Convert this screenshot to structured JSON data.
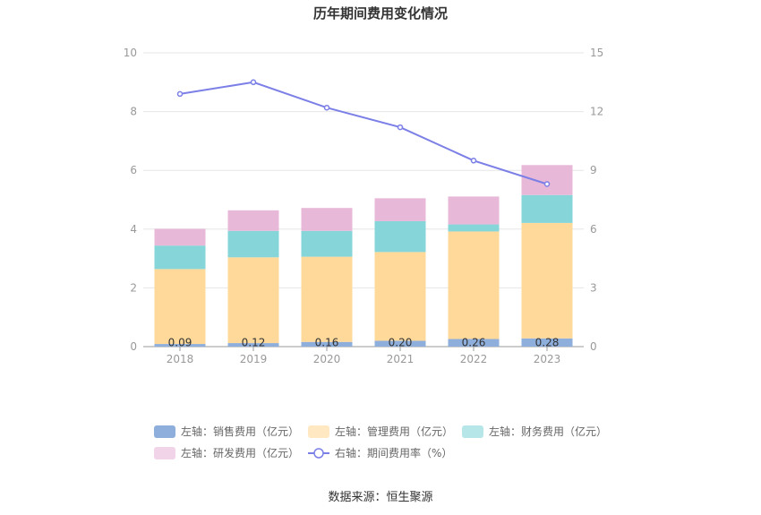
{
  "chart_data": {
    "type": "bar",
    "title": "历年期间费用变化情况",
    "categories": [
      "2018",
      "2019",
      "2020",
      "2021",
      "2022",
      "2023"
    ],
    "series": [
      {
        "name": "左轴：销售费用（亿元）",
        "kind": "bar",
        "axis": "left",
        "color": "#8eaedb",
        "values": [
          0.09,
          0.12,
          0.16,
          0.2,
          0.26,
          0.28
        ],
        "labels": [
          "0.09",
          "0.12",
          "0.16",
          "0.20",
          "0.26",
          "0.28"
        ]
      },
      {
        "name": "左轴：管理费用（亿元）",
        "kind": "bar",
        "axis": "left",
        "color": "#ffd99a",
        "values": [
          2.55,
          2.92,
          2.9,
          3.02,
          3.66,
          3.93
        ]
      },
      {
        "name": "左轴：财务费用（亿元）",
        "kind": "bar",
        "axis": "left",
        "color": "#86d6d9",
        "values": [
          0.8,
          0.9,
          0.88,
          1.05,
          0.24,
          0.95
        ]
      },
      {
        "name": "左轴：研发费用（亿元）",
        "kind": "bar",
        "axis": "left",
        "color": "#e8b8d8",
        "values": [
          0.57,
          0.7,
          0.78,
          0.78,
          0.95,
          1.02
        ]
      },
      {
        "name": "右轴：期间费用率（%）",
        "kind": "line",
        "axis": "right",
        "color": "#7b7fe6",
        "values": [
          12.9,
          13.5,
          12.2,
          11.2,
          9.5,
          8.3
        ]
      }
    ],
    "y_left": {
      "min": 0,
      "max": 10,
      "ticks": [
        "0",
        "2",
        "4",
        "6",
        "8",
        "10"
      ]
    },
    "y_right": {
      "min": 0,
      "max": 15,
      "ticks": [
        "0",
        "3",
        "6",
        "9",
        "12",
        "15"
      ]
    },
    "grid": true,
    "legend": "bottom"
  },
  "source": "数据来源：恒生聚源"
}
